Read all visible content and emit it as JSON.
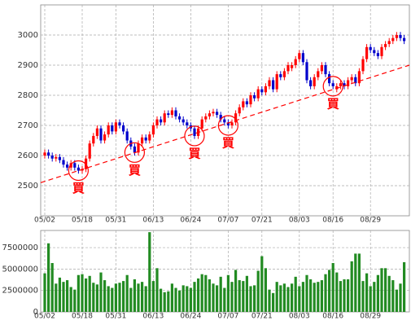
{
  "chart_data": [
    {
      "type": "candlestick",
      "categories": [
        "05/02",
        null,
        null,
        null,
        null,
        null,
        null,
        null,
        null,
        null,
        "05/18",
        null,
        null,
        null,
        null,
        null,
        null,
        null,
        null,
        "05/31",
        null,
        null,
        null,
        null,
        null,
        null,
        null,
        null,
        null,
        "06/13",
        null,
        null,
        null,
        null,
        null,
        null,
        null,
        null,
        null,
        "06/24",
        null,
        null,
        null,
        null,
        null,
        null,
        null,
        null,
        null,
        "07/07",
        null,
        null,
        null,
        null,
        null,
        null,
        null,
        null,
        "07/21",
        null,
        null,
        null,
        null,
        null,
        null,
        null,
        null,
        null,
        "08/03",
        null,
        null,
        null,
        null,
        null,
        null,
        null,
        null,
        "08/16",
        null,
        null,
        null,
        null,
        null,
        null,
        null,
        null,
        null,
        "08/29",
        null,
        null,
        null,
        null,
        null,
        null,
        null,
        null,
        null
      ],
      "open": [
        2600,
        2610,
        2600,
        2590,
        2595,
        2585,
        2570,
        2560,
        2575,
        2560,
        2550,
        2555,
        2590,
        2640,
        2665,
        2690,
        2650,
        2670,
        2700,
        2680,
        2710,
        2700,
        2680,
        2650,
        2630,
        2610,
        2640,
        2660,
        2650,
        2670,
        2700,
        2720,
        2710,
        2740,
        2735,
        2750,
        2730,
        2720,
        2710,
        2700,
        2690,
        2665,
        2690,
        2720,
        2730,
        2740,
        2745,
        2735,
        2720,
        2710,
        2700,
        2710,
        2740,
        2760,
        2780,
        2770,
        2800,
        2790,
        2820,
        2810,
        2830,
        2850,
        2820,
        2870,
        2860,
        2880,
        2890,
        2900,
        2920,
        2940,
        2910,
        2850,
        2830,
        2860,
        2880,
        2900,
        2870,
        2840,
        2820,
        2830,
        2840,
        2830,
        2850,
        2860,
        2840,
        2880,
        2920,
        2960,
        2950,
        2940,
        2930,
        2960,
        2970,
        2980,
        2990,
        3000,
        2990
      ],
      "high": [
        2620,
        2620,
        2610,
        2605,
        2605,
        2595,
        2580,
        2585,
        2585,
        2570,
        2565,
        2600,
        2650,
        2675,
        2700,
        2700,
        2680,
        2710,
        2710,
        2720,
        2720,
        2710,
        2690,
        2660,
        2640,
        2650,
        2670,
        2670,
        2680,
        2710,
        2730,
        2730,
        2750,
        2750,
        2760,
        2760,
        2740,
        2730,
        2720,
        2710,
        2700,
        2700,
        2730,
        2740,
        2750,
        2755,
        2755,
        2745,
        2730,
        2720,
        2720,
        2750,
        2770,
        2790,
        2790,
        2810,
        2810,
        2830,
        2830,
        2840,
        2860,
        2860,
        2880,
        2880,
        2890,
        2910,
        2910,
        2930,
        2950,
        2950,
        2920,
        2860,
        2870,
        2890,
        2910,
        2910,
        2880,
        2850,
        2840,
        2850,
        2850,
        2860,
        2870,
        2870,
        2890,
        2930,
        2970,
        2970,
        2960,
        2950,
        2970,
        2980,
        2990,
        3000,
        3010,
        3010,
        3000
      ],
      "low": [
        2590,
        2590,
        2580,
        2580,
        2575,
        2560,
        2550,
        2550,
        2550,
        2540,
        2540,
        2545,
        2580,
        2630,
        2655,
        2640,
        2640,
        2660,
        2670,
        2670,
        2690,
        2670,
        2640,
        2620,
        2600,
        2600,
        2630,
        2640,
        2640,
        2660,
        2690,
        2700,
        2700,
        2725,
        2725,
        2720,
        2710,
        2700,
        2690,
        2680,
        2655,
        2655,
        2680,
        2710,
        2720,
        2730,
        2725,
        2710,
        2700,
        2690,
        2690,
        2700,
        2730,
        2750,
        2760,
        2760,
        2780,
        2780,
        2800,
        2800,
        2820,
        2810,
        2810,
        2850,
        2850,
        2870,
        2880,
        2890,
        2910,
        2900,
        2840,
        2820,
        2820,
        2850,
        2870,
        2860,
        2830,
        2820,
        2810,
        2820,
        2820,
        2820,
        2840,
        2830,
        2830,
        2870,
        2910,
        2940,
        2930,
        2920,
        2920,
        2950,
        2960,
        2970,
        2980,
        2980,
        2970
      ],
      "close": [
        2610,
        2600,
        2590,
        2595,
        2585,
        2570,
        2560,
        2575,
        2560,
        2550,
        2555,
        2590,
        2640,
        2665,
        2690,
        2650,
        2670,
        2700,
        2680,
        2710,
        2700,
        2680,
        2650,
        2630,
        2610,
        2640,
        2660,
        2650,
        2670,
        2700,
        2720,
        2710,
        2740,
        2735,
        2750,
        2730,
        2720,
        2710,
        2700,
        2690,
        2665,
        2690,
        2720,
        2730,
        2740,
        2745,
        2735,
        2720,
        2710,
        2700,
        2710,
        2740,
        2760,
        2780,
        2770,
        2800,
        2790,
        2820,
        2810,
        2830,
        2850,
        2820,
        2870,
        2860,
        2880,
        2900,
        2900,
        2920,
        2940,
        2910,
        2850,
        2830,
        2860,
        2880,
        2900,
        2870,
        2840,
        2830,
        2830,
        2840,
        2830,
        2850,
        2860,
        2840,
        2880,
        2920,
        2960,
        2950,
        2940,
        2930,
        2960,
        2970,
        2980,
        2990,
        3000,
        2990,
        2980
      ],
      "up_color": "#ff0000",
      "down_color": "#0000cc",
      "ylim": [
        2400,
        3100
      ],
      "yticks": [
        2500,
        2600,
        2700,
        2800,
        2900,
        3000
      ],
      "grid": true,
      "trendline": {
        "start": 2510,
        "end": 2900,
        "color": "#ff0000"
      },
      "signals": [
        {
          "index": 9,
          "label": "買"
        },
        {
          "index": 24,
          "label": "買"
        },
        {
          "index": 40,
          "label": "買"
        },
        {
          "index": 49,
          "label": "買"
        },
        {
          "index": 77,
          "label": "買"
        }
      ]
    },
    {
      "type": "bar",
      "categories": [
        "05/02",
        null,
        null,
        null,
        null,
        null,
        null,
        null,
        null,
        null,
        "05/18",
        null,
        null,
        null,
        null,
        null,
        null,
        null,
        null,
        "05/31",
        null,
        null,
        null,
        null,
        null,
        null,
        null,
        null,
        null,
        "06/13",
        null,
        null,
        null,
        null,
        null,
        null,
        null,
        null,
        null,
        "06/24",
        null,
        null,
        null,
        null,
        null,
        null,
        null,
        null,
        null,
        "07/07",
        null,
        null,
        null,
        null,
        null,
        null,
        null,
        null,
        "07/21",
        null,
        null,
        null,
        null,
        null,
        null,
        null,
        null,
        null,
        "08/03",
        null,
        null,
        null,
        null,
        null,
        null,
        null,
        null,
        "08/16",
        null,
        null,
        null,
        null,
        null,
        null,
        null,
        null,
        null,
        "08/29",
        null,
        null,
        null,
        null,
        null,
        null,
        null,
        null,
        null
      ],
      "values": [
        4500000,
        8000000,
        5700000,
        3300000,
        4000000,
        3500000,
        3700000,
        2900000,
        2600000,
        4300000,
        4400000,
        3900000,
        4200000,
        3400000,
        3200000,
        4600000,
        3700000,
        3000000,
        2800000,
        3300000,
        3400000,
        3600000,
        4300000,
        2800000,
        3800000,
        3300000,
        3500000,
        3000000,
        9300000,
        3600000,
        5100000,
        2700000,
        2300000,
        2400000,
        3300000,
        2800000,
        2500000,
        3100000,
        3000000,
        2800000,
        3500000,
        3900000,
        4400000,
        4300000,
        3800000,
        3300000,
        3100000,
        4100000,
        2800000,
        4300000,
        3500000,
        4900000,
        3700000,
        3600000,
        4200000,
        3000000,
        3100000,
        4800000,
        6500000,
        5100000,
        2600000,
        2200000,
        3500000,
        3100000,
        3300000,
        2900000,
        3300000,
        4100000,
        3000000,
        3500000,
        4300000,
        3800000,
        3400000,
        3500000,
        3700000,
        4400000,
        4900000,
        5700000,
        4600000,
        3600000,
        3800000,
        3800000,
        5900000,
        6800000,
        6800000,
        3600000,
        4500000,
        3000000,
        3500000,
        4300000,
        5100000,
        5100000,
        4200000,
        3700000,
        2600000,
        3300000,
        5800000
      ],
      "color": "#228b22",
      "ylim": [
        0,
        9500000
      ],
      "yticks": [
        0,
        2500000,
        5000000,
        7500000
      ],
      "grid": true
    }
  ]
}
